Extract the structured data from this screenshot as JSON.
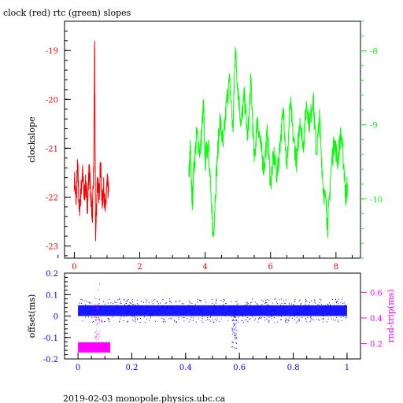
{
  "title": "clock (red) rtc (green) slopes",
  "footer": "2019-02-03  monopole.physics.ubc.ca",
  "chart_data": [
    {
      "type": "line",
      "ylabel": "clockslope",
      "xlim": [
        -0.3,
        8.75
      ],
      "ylim": [
        -23.25,
        -18.4
      ],
      "x_ticks": [
        0,
        2,
        4,
        6,
        8
      ],
      "y_ticks": [
        -19,
        -20,
        -21,
        -22,
        -23
      ],
      "y2lim": [
        -10.8,
        -7.6
      ],
      "y2_ticks": [
        -8,
        -9,
        -10
      ],
      "colors": {
        "axis": "#ff0000",
        "clock": "#ff0000",
        "rtc": "#00ff00",
        "frame": "#000000"
      },
      "series": [
        {
          "axis": "left",
          "points": [
            [
              0.0,
              -21.6
            ],
            [
              0.05,
              -22.1
            ],
            [
              0.1,
              -21.3
            ],
            [
              0.15,
              -22.3
            ],
            [
              0.2,
              -21.9
            ],
            [
              0.25,
              -21.5
            ],
            [
              0.3,
              -22.0
            ],
            [
              0.35,
              -21.7
            ],
            [
              0.4,
              -22.2
            ],
            [
              0.45,
              -21.4
            ],
            [
              0.5,
              -21.9
            ],
            [
              0.55,
              -22.4
            ],
            [
              0.6,
              -21.2
            ],
            [
              0.62,
              -18.8
            ],
            [
              0.65,
              -22.9
            ],
            [
              0.7,
              -21.6
            ],
            [
              0.75,
              -22.0
            ],
            [
              0.8,
              -21.3
            ],
            [
              0.85,
              -22.1
            ],
            [
              0.9,
              -21.8
            ],
            [
              0.95,
              -22.3
            ],
            [
              1.0,
              -21.7
            ],
            [
              1.05,
              -21.9
            ]
          ]
        },
        {
          "axis": "right",
          "points": [
            [
              3.5,
              -9.7
            ],
            [
              3.55,
              -9.3
            ],
            [
              3.6,
              -10.1
            ],
            [
              3.65,
              -9.6
            ],
            [
              3.75,
              -9.1
            ],
            [
              3.85,
              -9.4
            ],
            [
              3.95,
              -8.7
            ],
            [
              4.0,
              -9.5
            ],
            [
              4.1,
              -9.2
            ],
            [
              4.2,
              -10.2
            ],
            [
              4.25,
              -10.5
            ],
            [
              4.35,
              -9.6
            ],
            [
              4.45,
              -8.9
            ],
            [
              4.55,
              -9.3
            ],
            [
              4.65,
              -8.7
            ],
            [
              4.75,
              -8.4
            ],
            [
              4.85,
              -9.1
            ],
            [
              4.92,
              -7.95
            ],
            [
              5.0,
              -8.5
            ],
            [
              5.1,
              -9.0
            ],
            [
              5.2,
              -8.6
            ],
            [
              5.3,
              -9.2
            ],
            [
              5.4,
              -8.4
            ],
            [
              5.5,
              -9.5
            ],
            [
              5.6,
              -8.9
            ],
            [
              5.7,
              -9.3
            ],
            [
              5.8,
              -9.6
            ],
            [
              5.9,
              -9.1
            ],
            [
              6.0,
              -9.8
            ],
            [
              6.1,
              -9.4
            ],
            [
              6.2,
              -9.7
            ],
            [
              6.3,
              -9.2
            ],
            [
              6.4,
              -8.8
            ],
            [
              6.5,
              -9.6
            ],
            [
              6.6,
              -8.7
            ],
            [
              6.7,
              -9.2
            ],
            [
              6.8,
              -9.5
            ],
            [
              6.9,
              -8.9
            ],
            [
              7.0,
              -9.3
            ],
            [
              7.1,
              -8.7
            ],
            [
              7.2,
              -9.0
            ],
            [
              7.3,
              -8.6
            ],
            [
              7.4,
              -9.4
            ],
            [
              7.5,
              -8.9
            ],
            [
              7.6,
              -9.8
            ],
            [
              7.7,
              -10.1
            ],
            [
              7.75,
              -10.4
            ],
            [
              7.85,
              -9.6
            ],
            [
              7.95,
              -9.2
            ],
            [
              8.05,
              -9.5
            ],
            [
              8.15,
              -9.1
            ],
            [
              8.25,
              -9.6
            ],
            [
              8.3,
              -10.0
            ],
            [
              8.35,
              -9.8
            ]
          ]
        }
      ]
    },
    {
      "type": "scatter",
      "ylabel": "offset(ms)",
      "y2label": "rnd-trip(ms)",
      "xlim": [
        -0.05,
        1.05
      ],
      "ylim": [
        -0.2,
        0.2
      ],
      "x_ticks": [
        "0",
        "0.2",
        "0.4",
        "0.6",
        "0.8",
        "1"
      ],
      "y_ticks": [
        "0.2",
        "0.1",
        "0",
        "-0.1",
        "-0.2"
      ],
      "y2lim": [
        0.08,
        0.75
      ],
      "y2_ticks": [
        "0.6",
        "0.4",
        "0.2"
      ],
      "colors": {
        "axis": "#0000ff",
        "offset": "#0000ff",
        "roundtrip": "#ff00ff",
        "frame": "#000000"
      },
      "offset_band": {
        "x_range": [
          0.0,
          1.0
        ],
        "y_range": [
          0.0,
          0.05
        ]
      },
      "roundtrip_band": {
        "x_range": [
          0.0,
          0.12
        ],
        "y_range": [
          0.13,
          0.21
        ]
      },
      "offset_dip": {
        "x": 0.58,
        "y_min": -0.17
      }
    }
  ]
}
